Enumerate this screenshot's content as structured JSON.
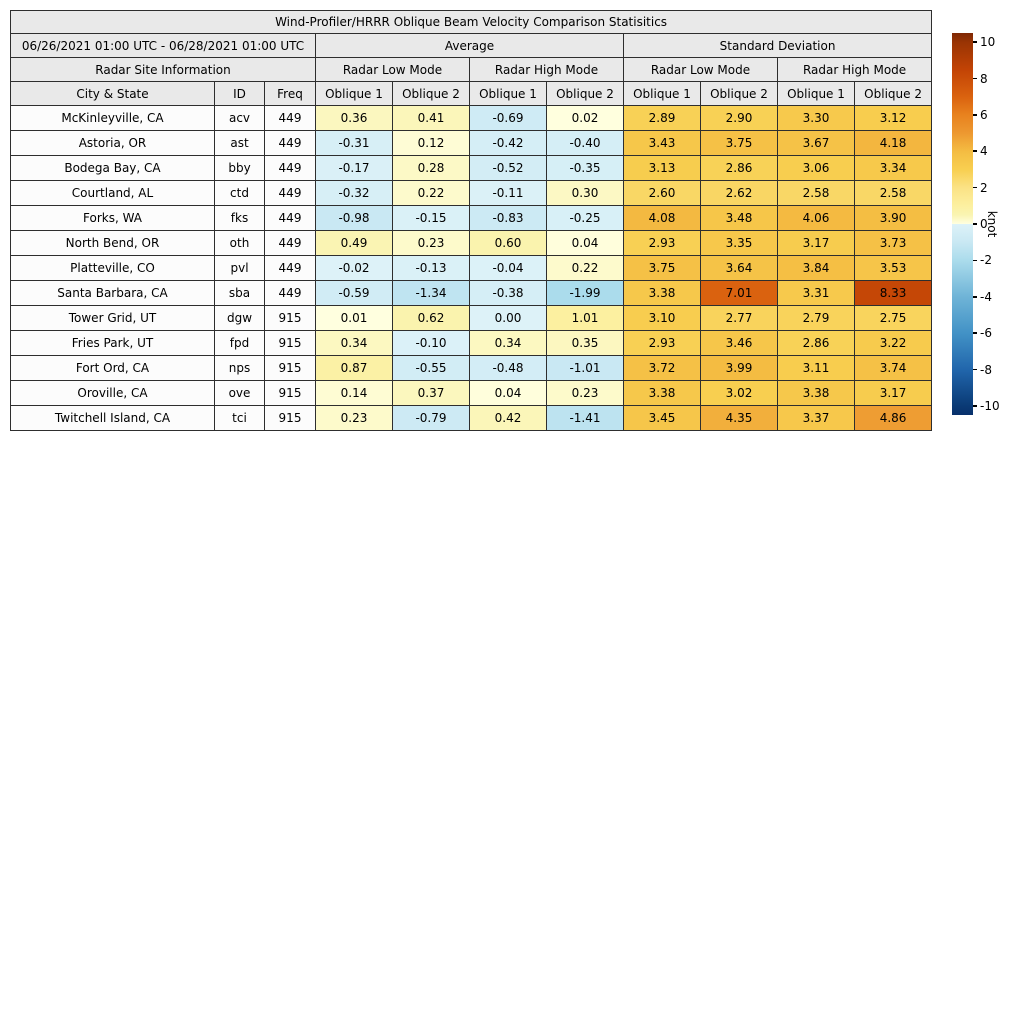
{
  "chart_data": {
    "type": "table",
    "title": "Wind-Profiler/HRRR Oblique Beam Velocity Comparison Statisitics",
    "date_range": "06/26/2021 01:00 UTC - 06/28/2021 01:00 UTC",
    "group_headers": [
      "Average",
      "Standard Deviation"
    ],
    "site_info_header": "Radar Site Information",
    "mode_headers": [
      "Radar Low Mode",
      "Radar High Mode",
      "Radar Low Mode",
      "Radar High Mode"
    ],
    "columns": [
      "City & State",
      "ID",
      "Freq",
      "Oblique 1",
      "Oblique 2",
      "Oblique 1",
      "Oblique 2",
      "Oblique 1",
      "Oblique 2",
      "Oblique 1",
      "Oblique 2"
    ],
    "rows": [
      {
        "city": "McKinleyville, CA",
        "id": "acv",
        "freq": "449",
        "values": [
          0.36,
          0.41,
          -0.69,
          0.02,
          2.89,
          2.9,
          3.3,
          3.12
        ]
      },
      {
        "city": "Astoria, OR",
        "id": "ast",
        "freq": "449",
        "values": [
          -0.31,
          0.12,
          -0.42,
          -0.4,
          3.43,
          3.75,
          3.67,
          4.18
        ]
      },
      {
        "city": "Bodega Bay, CA",
        "id": "bby",
        "freq": "449",
        "values": [
          -0.17,
          0.28,
          -0.52,
          -0.35,
          3.13,
          2.86,
          3.06,
          3.34
        ]
      },
      {
        "city": "Courtland, AL",
        "id": "ctd",
        "freq": "449",
        "values": [
          -0.32,
          0.22,
          -0.11,
          0.3,
          2.6,
          2.62,
          2.58,
          2.58
        ]
      },
      {
        "city": "Forks, WA",
        "id": "fks",
        "freq": "449",
        "values": [
          -0.98,
          -0.15,
          -0.83,
          -0.25,
          4.08,
          3.48,
          4.06,
          3.9
        ]
      },
      {
        "city": "North Bend, OR",
        "id": "oth",
        "freq": "449",
        "values": [
          0.49,
          0.23,
          0.6,
          0.04,
          2.93,
          3.35,
          3.17,
          3.73
        ]
      },
      {
        "city": "Platteville, CO",
        "id": "pvl",
        "freq": "449",
        "values": [
          -0.02,
          -0.13,
          -0.04,
          0.22,
          3.75,
          3.64,
          3.84,
          3.53
        ]
      },
      {
        "city": "Santa Barbara, CA",
        "id": "sba",
        "freq": "449",
        "values": [
          -0.59,
          -1.34,
          -0.38,
          -1.99,
          3.38,
          7.01,
          3.31,
          8.33
        ]
      },
      {
        "city": "Tower Grid, UT",
        "id": "dgw",
        "freq": "915",
        "values": [
          0.01,
          0.62,
          0.0,
          1.01,
          3.1,
          2.77,
          2.79,
          2.75
        ]
      },
      {
        "city": "Fries Park, UT",
        "id": "fpd",
        "freq": "915",
        "values": [
          0.34,
          -0.1,
          0.34,
          0.35,
          2.93,
          3.46,
          2.86,
          3.22
        ]
      },
      {
        "city": "Fort Ord, CA",
        "id": "nps",
        "freq": "915",
        "values": [
          0.87,
          -0.55,
          -0.48,
          -1.01,
          3.72,
          3.99,
          3.11,
          3.74
        ]
      },
      {
        "city": "Oroville, CA",
        "id": "ove",
        "freq": "915",
        "values": [
          0.14,
          0.37,
          0.04,
          0.23,
          3.38,
          3.02,
          3.38,
          3.17
        ]
      },
      {
        "city": "Twitchell Island, CA",
        "id": "tci",
        "freq": "915",
        "values": [
          0.23,
          -0.79,
          0.42,
          -1.41,
          3.45,
          4.35,
          3.37,
          4.86
        ]
      }
    ],
    "zero_shaded_negative": [
      {
        "row_index": 8,
        "value_index": 2
      }
    ],
    "colorbar": {
      "label": "knot",
      "ticks": [
        10,
        8,
        6,
        4,
        2,
        0,
        -2,
        -4,
        -6,
        -8,
        -10
      ],
      "vmin": -10.5,
      "vmax": 10.5,
      "warm_anchors": [
        [
          0,
          "#ffffe0"
        ],
        [
          0.5,
          "#faf4b2"
        ],
        [
          1,
          "#fcf0a0"
        ],
        [
          2,
          "#fbe285"
        ],
        [
          3,
          "#f8cf50"
        ],
        [
          4,
          "#f4bc42"
        ],
        [
          5,
          "#ed9830"
        ],
        [
          6,
          "#e8821e"
        ],
        [
          7,
          "#da620f"
        ],
        [
          8.5,
          "#c24305"
        ],
        [
          10,
          "#993404"
        ],
        [
          10.5,
          "#7f2704"
        ]
      ],
      "cool_anchors": [
        [
          0,
          "#ddf2f8"
        ],
        [
          1,
          "#c9e8f3"
        ],
        [
          2,
          "#abdcec"
        ],
        [
          4,
          "#6fb4d7"
        ],
        [
          6,
          "#4292c6"
        ],
        [
          8,
          "#2166ac"
        ],
        [
          10,
          "#0a3a75"
        ],
        [
          10.5,
          "#08306b"
        ]
      ]
    }
  }
}
